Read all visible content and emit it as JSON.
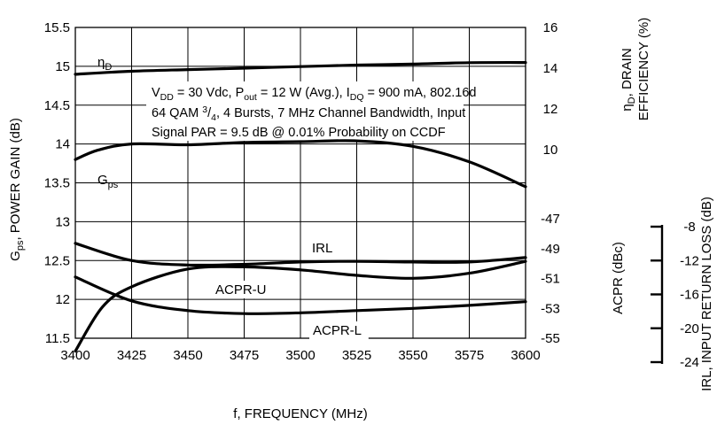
{
  "chart_data": {
    "type": "line",
    "x_axis": {
      "label": "f, FREQUENCY (MHz)",
      "ticks": [
        3400,
        3425,
        3450,
        3475,
        3500,
        3525,
        3550,
        3575,
        3600
      ],
      "range": [
        3400,
        3600
      ]
    },
    "left_axis": {
      "label_main": "G",
      "label_sub": "ps",
      "label_rest": ", POWER GAIN (dB)",
      "range": [
        11.5,
        15.5
      ],
      "ticks": [
        "11.5",
        "12",
        "12.5",
        "13",
        "13.5",
        "14",
        "14.5",
        "15",
        "15.5"
      ]
    },
    "right_axis_efficiency": {
      "label_line1_main": "η",
      "label_line1_sub": "D",
      "label_line1_rest": ", DRAIN",
      "label_line2": "EFFICIENCY (%)",
      "range": [
        10,
        16
      ],
      "ticks": [
        "16",
        "14",
        "12",
        "10"
      ]
    },
    "right_axis_acpr": {
      "label": "ACPR (dBc)",
      "range": [
        -55,
        -47
      ],
      "ticks": [
        "-47",
        "-49",
        "-51",
        "-53",
        "-55"
      ]
    },
    "right_axis_irl": {
      "label": "IRL, INPUT RETURN LOSS (dB)",
      "range": [
        -24,
        -8
      ],
      "ticks": [
        "-8",
        "-12",
        "-16",
        "-20",
        "-24"
      ]
    },
    "grid": true,
    "annotation": {
      "l1a": "V",
      "l1b": "DD",
      "l1c": " = 30 Vdc, P",
      "l1d": "out",
      "l1e": " = 12 W (Avg.), I",
      "l1f": "DQ",
      "l1g": " = 900 mA, 802.16d",
      "l2a": "64 QAM ",
      "l2b": "3",
      "l2c": "/",
      "l2d": "4",
      "l2e": ", 4 Bursts, 7 MHz Channel Bandwidth, Input",
      "l3": "Signal PAR = 9.5 dB @ 0.01% Probability on CCDF"
    },
    "series": [
      {
        "name_main": "η",
        "name_sub": "D",
        "axis": "efficiency",
        "x": [
          3400,
          3425,
          3450,
          3475,
          3500,
          3525,
          3550,
          3575,
          3600
        ],
        "values": [
          13.7,
          13.85,
          13.93,
          14.0,
          14.08,
          14.15,
          14.2,
          14.27,
          14.28
        ]
      },
      {
        "name_main": "G",
        "name_sub": "ps",
        "axis": "gain",
        "x": [
          3400,
          3410,
          3425,
          3450,
          3475,
          3500,
          3525,
          3550,
          3575,
          3600
        ],
        "values": [
          13.8,
          13.92,
          14.0,
          13.99,
          14.02,
          14.03,
          14.04,
          13.97,
          13.77,
          13.45
        ]
      },
      {
        "name_main": "IRL",
        "name_sub": "",
        "axis": "irl",
        "x": [
          3400,
          3412,
          3425,
          3450,
          3475,
          3500,
          3525,
          3550,
          3575,
          3600
        ],
        "values": [
          -22.7,
          -17.5,
          -15.1,
          -13.0,
          -12.75,
          -13.1,
          -13.75,
          -14.1,
          -13.5,
          -12.1
        ]
      },
      {
        "name_main": "ACPR-U",
        "name_sub": "",
        "axis": "acpr",
        "x": [
          3400,
          3425,
          3450,
          3475,
          3500,
          3525,
          3550,
          3575,
          3600
        ],
        "values": [
          -48.65,
          -49.8,
          -50.1,
          -50.05,
          -49.9,
          -49.85,
          -49.9,
          -49.9,
          -49.6
        ]
      },
      {
        "name_main": "ACPR-L",
        "name_sub": "",
        "axis": "acpr",
        "x": [
          3400,
          3425,
          3450,
          3475,
          3500,
          3525,
          3550,
          3575,
          3600
        ],
        "values": [
          -50.9,
          -52.5,
          -53.15,
          -53.35,
          -53.3,
          -53.15,
          -53.0,
          -52.8,
          -52.55
        ]
      }
    ]
  }
}
